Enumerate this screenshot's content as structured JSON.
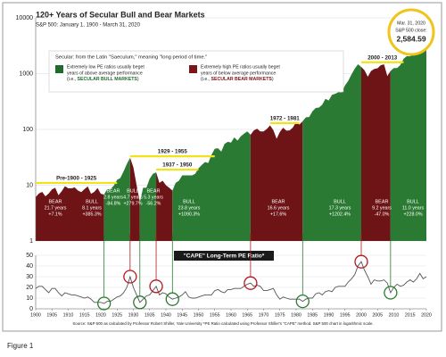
{
  "chart_data": [
    {
      "type": "area",
      "title": "120+ Years of Secular Bull and Bear Markets",
      "subtitle": "S&P 500: January 1, 1900 - March 31, 2020",
      "log_scale": true,
      "grid": true,
      "ylim": [
        1,
        10000
      ],
      "yticks": [
        1,
        10,
        100,
        1000,
        10000
      ],
      "xlim": [
        1900,
        2020
      ],
      "x": [
        1900,
        1901,
        1902,
        1903,
        1904,
        1905,
        1906,
        1907,
        1908,
        1909,
        1910,
        1911,
        1912,
        1913,
        1914,
        1915,
        1916,
        1917,
        1918,
        1919,
        1920,
        1921,
        1922,
        1923,
        1924,
        1925,
        1926,
        1927,
        1928,
        1929,
        1930,
        1931,
        1932,
        1933,
        1934,
        1935,
        1936,
        1937,
        1938,
        1939,
        1940,
        1941,
        1942,
        1943,
        1944,
        1945,
        1946,
        1947,
        1948,
        1949,
        1950,
        1951,
        1952,
        1953,
        1954,
        1955,
        1956,
        1957,
        1958,
        1959,
        1960,
        1961,
        1962,
        1963,
        1964,
        1965,
        1966,
        1967,
        1968,
        1969,
        1970,
        1971,
        1972,
        1973,
        1974,
        1975,
        1976,
        1977,
        1978,
        1979,
        1980,
        1981,
        1982,
        1983,
        1984,
        1985,
        1986,
        1987,
        1988,
        1989,
        1990,
        1991,
        1992,
        1993,
        1994,
        1995,
        1996,
        1997,
        1998,
        1999,
        2000,
        2001,
        2002,
        2003,
        2004,
        2005,
        2006,
        2007,
        2008,
        2009,
        2010,
        2011,
        2012,
        2013,
        2014,
        2015,
        2016,
        2017,
        2018,
        2019,
        2020
      ],
      "values": [
        6.1,
        7.1,
        7.6,
        6.3,
        7.1,
        8.4,
        9,
        6.6,
        7.8,
        9.6,
        8.8,
        8.8,
        9.1,
        8,
        7.5,
        8.5,
        9.5,
        7,
        7.6,
        8.9,
        7,
        6.8,
        8.5,
        8.5,
        9.8,
        12.5,
        13.4,
        17.7,
        24,
        31,
        21,
        10,
        5,
        9,
        9,
        13,
        16,
        17,
        11,
        12,
        10,
        9,
        8,
        11,
        12,
        15,
        15,
        15,
        15,
        16,
        20,
        23,
        26,
        25,
        35,
        45,
        46,
        40,
        55,
        60,
        58,
        72,
        63,
        75,
        84,
        92,
        80,
        96,
        103,
        92,
        92,
        102,
        118,
        97,
        68,
        90,
        107,
        95,
        96,
        108,
        136,
        122,
        140,
        165,
        167,
        211,
        242,
        247,
        277,
        353,
        330,
        417,
        435,
        466,
        459,
        615,
        740,
        970,
        1229,
        1469,
        1320,
        1148,
        880,
        1112,
        1212,
        1248,
        1418,
        1468,
        903,
        1115,
        1258,
        1258,
        1426,
        1848,
        2059,
        2044,
        2239,
        2674,
        2507,
        3231,
        2585
      ],
      "note": "Secular: from the Latin \"Saeculum,\" meaning \"long period of time.\"",
      "legend": [
        {
          "color": "#1f6b2a",
          "lines": [
            "Extremely low PE ratios usually beget",
            "years of above average performance"
          ],
          "prefix": "(i.e., ",
          "emphasis": "SECULAR BULL MARKETS",
          "suffix": ")"
        },
        {
          "color": "#7a1518",
          "lines": [
            "Extremely high PE ratios usually beget",
            "years of below average performance"
          ],
          "prefix": "(i.e., ",
          "emphasis": "SECULAR BEAR MARKETS",
          "suffix": ")"
        }
      ],
      "periods": [
        {
          "label": "Pre-1900 - 1925",
          "start": 1900,
          "end": 1925,
          "y": 11
        },
        {
          "label": "1929 - 1955",
          "start": 1929,
          "end": 1955,
          "y": 33
        },
        {
          "label": "1937 - 1950",
          "start": 1937,
          "end": 1950,
          "y": 19
        },
        {
          "label": "1972 - 1981",
          "start": 1972,
          "end": 1981,
          "y": 130
        },
        {
          "label": "2000 - 2013",
          "start": 2000,
          "end": 2013,
          "y": 1600
        }
      ],
      "phases": [
        {
          "label": "BEAR",
          "duration": "21.7 years",
          "change": "+7.1%",
          "start": 1900,
          "end": 1921,
          "color": "#6e1416"
        },
        {
          "label": "BULL",
          "duration": "8.1 years",
          "change": "+385.3%",
          "start": 1921,
          "end": 1929,
          "color": "#2b7a33"
        },
        {
          "label": "BEAR",
          "duration": "2.8 years",
          "change": "-84.8%",
          "start": 1929,
          "end": 1932,
          "color": "#6e1416"
        },
        {
          "label": "BULL",
          "duration": "4.7 years",
          "change": "+279.7%",
          "start": 1932,
          "end": 1937,
          "color": "#2b7a33"
        },
        {
          "label": "BEAR",
          "duration": "5.3 years",
          "change": "-56.2%",
          "start": 1937,
          "end": 1942,
          "color": "#6e1416"
        },
        {
          "label": "BULL",
          "duration": "23.8 years",
          "change": "+1090.3%",
          "start": 1942,
          "end": 1966,
          "color": "#2b7a33"
        },
        {
          "label": "BEAR",
          "duration": "16.6 years",
          "change": "+17.6%",
          "start": 1966,
          "end": 1982,
          "color": "#6e1416"
        },
        {
          "label": "BULL",
          "duration": "17.3 years",
          "change": "+1202.4%",
          "start": 1982,
          "end": 2000,
          "color": "#2b7a33"
        },
        {
          "label": "BEAR",
          "duration": "9.2 years",
          "change": "-47.0%",
          "start": 2000,
          "end": 2009,
          "color": "#6e1416"
        },
        {
          "label": "BULL",
          "duration": "11.0 years",
          "change": "+228.0%",
          "start": 2009,
          "end": 2020,
          "color": "#2b7a33"
        }
      ],
      "callout": {
        "date": "Mar. 31, 2020",
        "label": "S&P 500 close:",
        "value": "2,584.59"
      }
    },
    {
      "type": "line",
      "title": "\"CAPE\" Long-Term PE Ratio*",
      "color": "#555555",
      "grid": true,
      "ylim": [
        0,
        50
      ],
      "yticks": [
        0,
        10,
        20,
        30,
        40,
        50
      ],
      "xlim": [
        1900,
        2020
      ],
      "xticks": [
        1900,
        1905,
        1910,
        1915,
        1920,
        1925,
        1930,
        1935,
        1940,
        1945,
        1950,
        1955,
        1960,
        1965,
        1970,
        1975,
        1980,
        1985,
        1990,
        1995,
        2000,
        2005,
        2010,
        2015,
        2020
      ],
      "x": [
        1900,
        1901,
        1902,
        1903,
        1904,
        1905,
        1906,
        1907,
        1908,
        1909,
        1910,
        1911,
        1912,
        1913,
        1914,
        1915,
        1916,
        1917,
        1918,
        1919,
        1920,
        1921,
        1922,
        1923,
        1924,
        1925,
        1926,
        1927,
        1928,
        1929,
        1930,
        1931,
        1932,
        1933,
        1934,
        1935,
        1936,
        1937,
        1938,
        1939,
        1940,
        1941,
        1942,
        1943,
        1944,
        1945,
        1946,
        1947,
        1948,
        1949,
        1950,
        1951,
        1952,
        1953,
        1954,
        1955,
        1956,
        1957,
        1958,
        1959,
        1960,
        1961,
        1962,
        1963,
        1964,
        1965,
        1966,
        1967,
        1968,
        1969,
        1970,
        1971,
        1972,
        1973,
        1974,
        1975,
        1976,
        1977,
        1978,
        1979,
        1980,
        1981,
        1982,
        1983,
        1984,
        1985,
        1986,
        1987,
        1988,
        1989,
        1990,
        1991,
        1992,
        1993,
        1994,
        1995,
        1996,
        1997,
        1998,
        1999,
        2000,
        2001,
        2002,
        2003,
        2004,
        2005,
        2006,
        2007,
        2008,
        2009,
        2010,
        2011,
        2012,
        2013,
        2014,
        2015,
        2016,
        2017,
        2018,
        2019,
        2020
      ],
      "values": [
        19,
        21,
        21,
        18,
        15,
        19,
        19,
        15,
        12,
        15,
        14,
        13,
        13,
        12,
        11,
        10,
        11,
        9,
        6,
        6,
        6,
        5,
        7,
        7,
        9,
        11,
        12,
        15,
        20,
        30,
        20,
        13,
        6,
        9,
        12,
        13,
        17,
        21,
        13,
        15,
        14,
        11,
        9,
        10,
        11,
        13,
        16,
        11,
        10,
        10,
        11,
        12,
        13,
        13,
        13,
        17,
        18,
        16,
        15,
        18,
        18,
        19,
        19,
        19,
        21,
        23,
        24,
        21,
        22,
        21,
        17,
        17,
        18,
        19,
        13,
        9,
        11,
        10,
        9,
        9,
        9,
        9,
        7,
        9,
        10,
        10,
        14,
        15,
        13,
        16,
        17,
        16,
        20,
        21,
        21,
        21,
        25,
        28,
        32,
        40,
        44,
        36,
        30,
        23,
        27,
        26,
        26,
        27,
        24,
        15,
        20,
        23,
        21,
        22,
        25,
        27,
        25,
        28,
        33,
        28,
        30
      ],
      "highlights": [
        {
          "x": 1921,
          "y": 5,
          "color": "#2b7a33"
        },
        {
          "x": 1929,
          "y": 30,
          "color": "#b3191e"
        },
        {
          "x": 1932,
          "y": 6,
          "color": "#2b7a33"
        },
        {
          "x": 1937,
          "y": 21,
          "color": "#b3191e"
        },
        {
          "x": 1942,
          "y": 9,
          "color": "#2b7a33"
        },
        {
          "x": 1966,
          "y": 24,
          "color": "#b3191e"
        },
        {
          "x": 1982,
          "y": 7,
          "color": "#2b7a33"
        },
        {
          "x": 2000,
          "y": 44,
          "color": "#b3191e"
        },
        {
          "x": 2009,
          "y": 15,
          "color": "#2b7a33"
        }
      ]
    }
  ],
  "source": "Source: S&P 500 as calculated by Professor Robert Shiller, Yale University  *PE Ratio calculated using Professor Shiller's \"CAPE\" method. S&P 500 chart in logarithmic scale.",
  "figure_label": "Figure 1"
}
